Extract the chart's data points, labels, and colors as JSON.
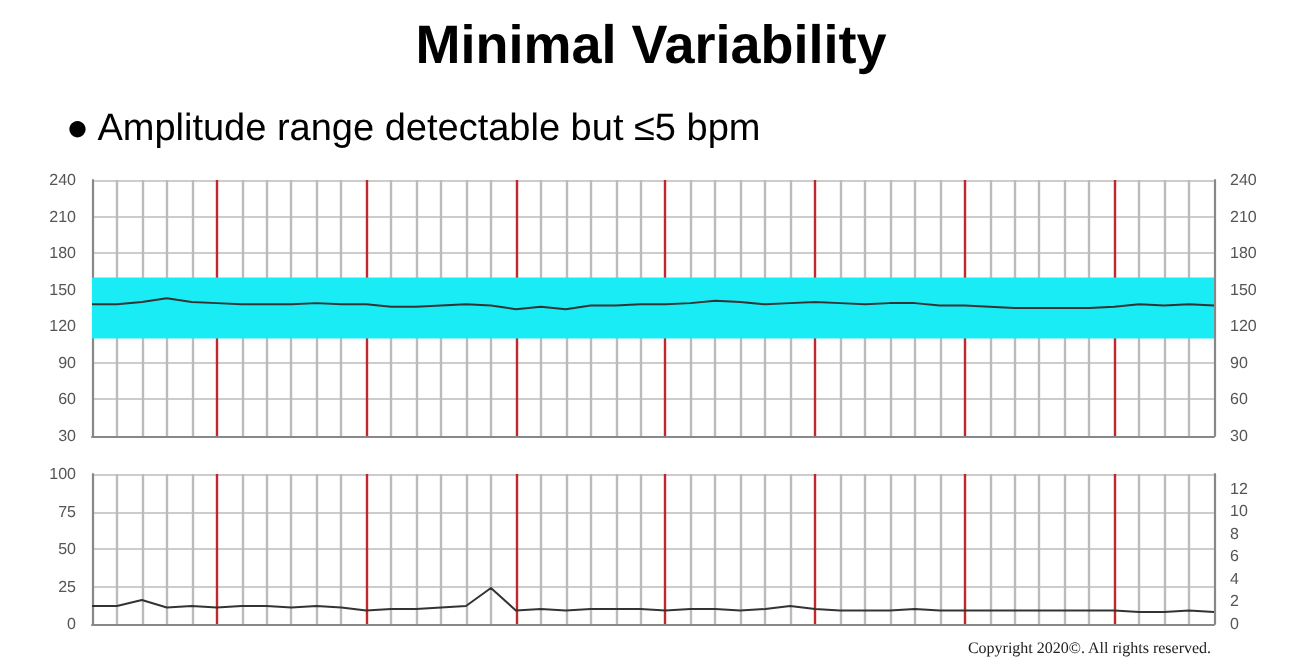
{
  "chart_data": [
    {
      "type": "line",
      "title": "Minimal Variability",
      "subtitle": "● Amplitude range detectable but ≤5 bpm",
      "categories": [
        null,
        null,
        null,
        null,
        null,
        null,
        null,
        null,
        null,
        null,
        null,
        null,
        null,
        null,
        null,
        null,
        null,
        null,
        null,
        null,
        null,
        null,
        null,
        null,
        null,
        null,
        null,
        null,
        null,
        null,
        null,
        null,
        null,
        null,
        null,
        null,
        null,
        null,
        null,
        null,
        null,
        null,
        null,
        null,
        null,
        null
      ],
      "ylim": [
        30,
        240
      ],
      "yticks": [
        30,
        60,
        90,
        120,
        150,
        180,
        210,
        240
      ],
      "y2lim": [
        30,
        240
      ],
      "y2ticks": [
        30,
        60,
        90,
        120,
        150,
        180,
        210,
        240
      ],
      "tick_labels": "y",
      "grid": true,
      "marker": "none",
      "line_style": "solid",
      "bands": [
        {
          "axis": "y",
          "from": 110,
          "to": 160,
          "color": "#19ecf5"
        }
      ],
      "series": [
        {
          "color": "#333333",
          "values": [
            138,
            138,
            140,
            143,
            140,
            139,
            138,
            138,
            138,
            139,
            138,
            138,
            136,
            136,
            137,
            138,
            137,
            134,
            136,
            134,
            137,
            137,
            138,
            138,
            139,
            141,
            140,
            138,
            139,
            140,
            139,
            138,
            139,
            139,
            137,
            137,
            136,
            135,
            135,
            135,
            135,
            136,
            138,
            137,
            138,
            137
          ]
        }
      ]
    },
    {
      "type": "line",
      "annotations": [
        "Copyright 2020©. All rights reserved."
      ],
      "categories": [
        null,
        null,
        null,
        null,
        null,
        null,
        null,
        null,
        null,
        null,
        null,
        null,
        null,
        null,
        null,
        null,
        null,
        null,
        null,
        null,
        null,
        null,
        null,
        null,
        null,
        null,
        null,
        null,
        null,
        null,
        null,
        null,
        null,
        null,
        null,
        null,
        null,
        null,
        null,
        null,
        null,
        null,
        null,
        null,
        null,
        null
      ],
      "ylim": [
        0,
        100
      ],
      "yticks": [
        0,
        25,
        50,
        75,
        100
      ],
      "y2lim": [
        0,
        13.3
      ],
      "y2ticks": [
        0,
        2,
        4,
        6,
        8,
        10,
        12
      ],
      "tick_labels": "y",
      "grid": true,
      "marker": "none",
      "line_style": "solid",
      "series": [
        {
          "color": "#333333",
          "values": [
            12,
            12,
            16,
            11,
            12,
            11,
            12,
            12,
            11,
            12,
            11,
            9,
            10,
            10,
            11,
            12,
            24,
            9,
            10,
            9,
            10,
            10,
            10,
            9,
            10,
            10,
            9,
            10,
            12,
            10,
            9,
            9,
            9,
            10,
            9,
            9,
            9,
            9,
            9,
            9,
            9,
            9,
            8,
            8,
            9,
            8
          ]
        }
      ]
    }
  ]
}
